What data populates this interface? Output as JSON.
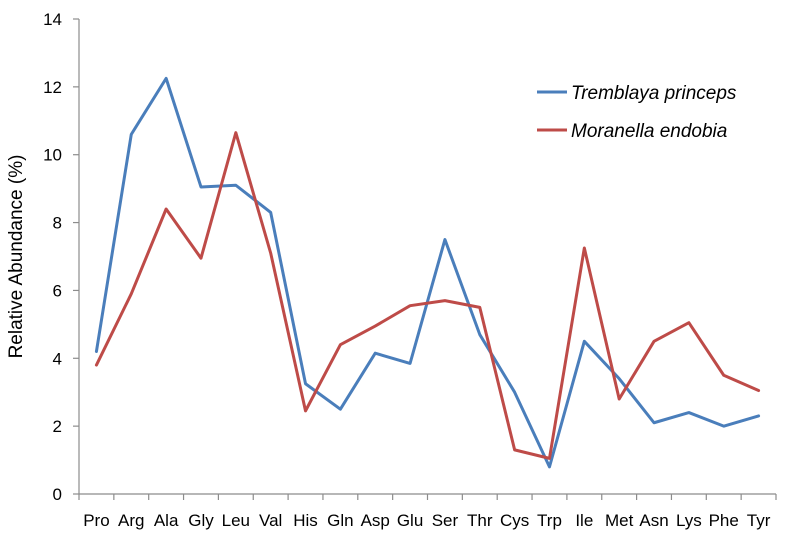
{
  "chart_data": {
    "type": "line",
    "title": "",
    "xlabel": "",
    "ylabel": "Relative Abundance (%)",
    "ylim": [
      0,
      14
    ],
    "yticks": [
      0,
      2,
      4,
      6,
      8,
      10,
      12,
      14
    ],
    "grid": false,
    "legend_position": "top-right",
    "categories": [
      "Pro",
      "Arg",
      "Ala",
      "Gly",
      "Leu",
      "Val",
      "His",
      "Gln",
      "Asp",
      "Glu",
      "Ser",
      "Thr",
      "Cys",
      "Trp",
      "Ile",
      "Met",
      "Asn",
      "Lys",
      "Phe",
      "Tyr"
    ],
    "series": [
      {
        "name": "Tremblaya princeps",
        "color": "#4a7ebb",
        "values": [
          4.2,
          10.6,
          12.25,
          9.05,
          9.1,
          8.3,
          3.25,
          2.5,
          4.15,
          3.85,
          7.5,
          4.7,
          3.0,
          0.8,
          4.5,
          3.4,
          2.1,
          2.4,
          2.0,
          2.3
        ]
      },
      {
        "name": "Moranella endobia",
        "color": "#be4b48",
        "values": [
          3.8,
          5.9,
          8.4,
          6.95,
          10.65,
          7.1,
          2.45,
          4.4,
          4.95,
          5.55,
          5.7,
          5.5,
          1.3,
          1.05,
          7.25,
          2.8,
          4.5,
          5.05,
          3.5,
          3.05
        ]
      }
    ]
  }
}
